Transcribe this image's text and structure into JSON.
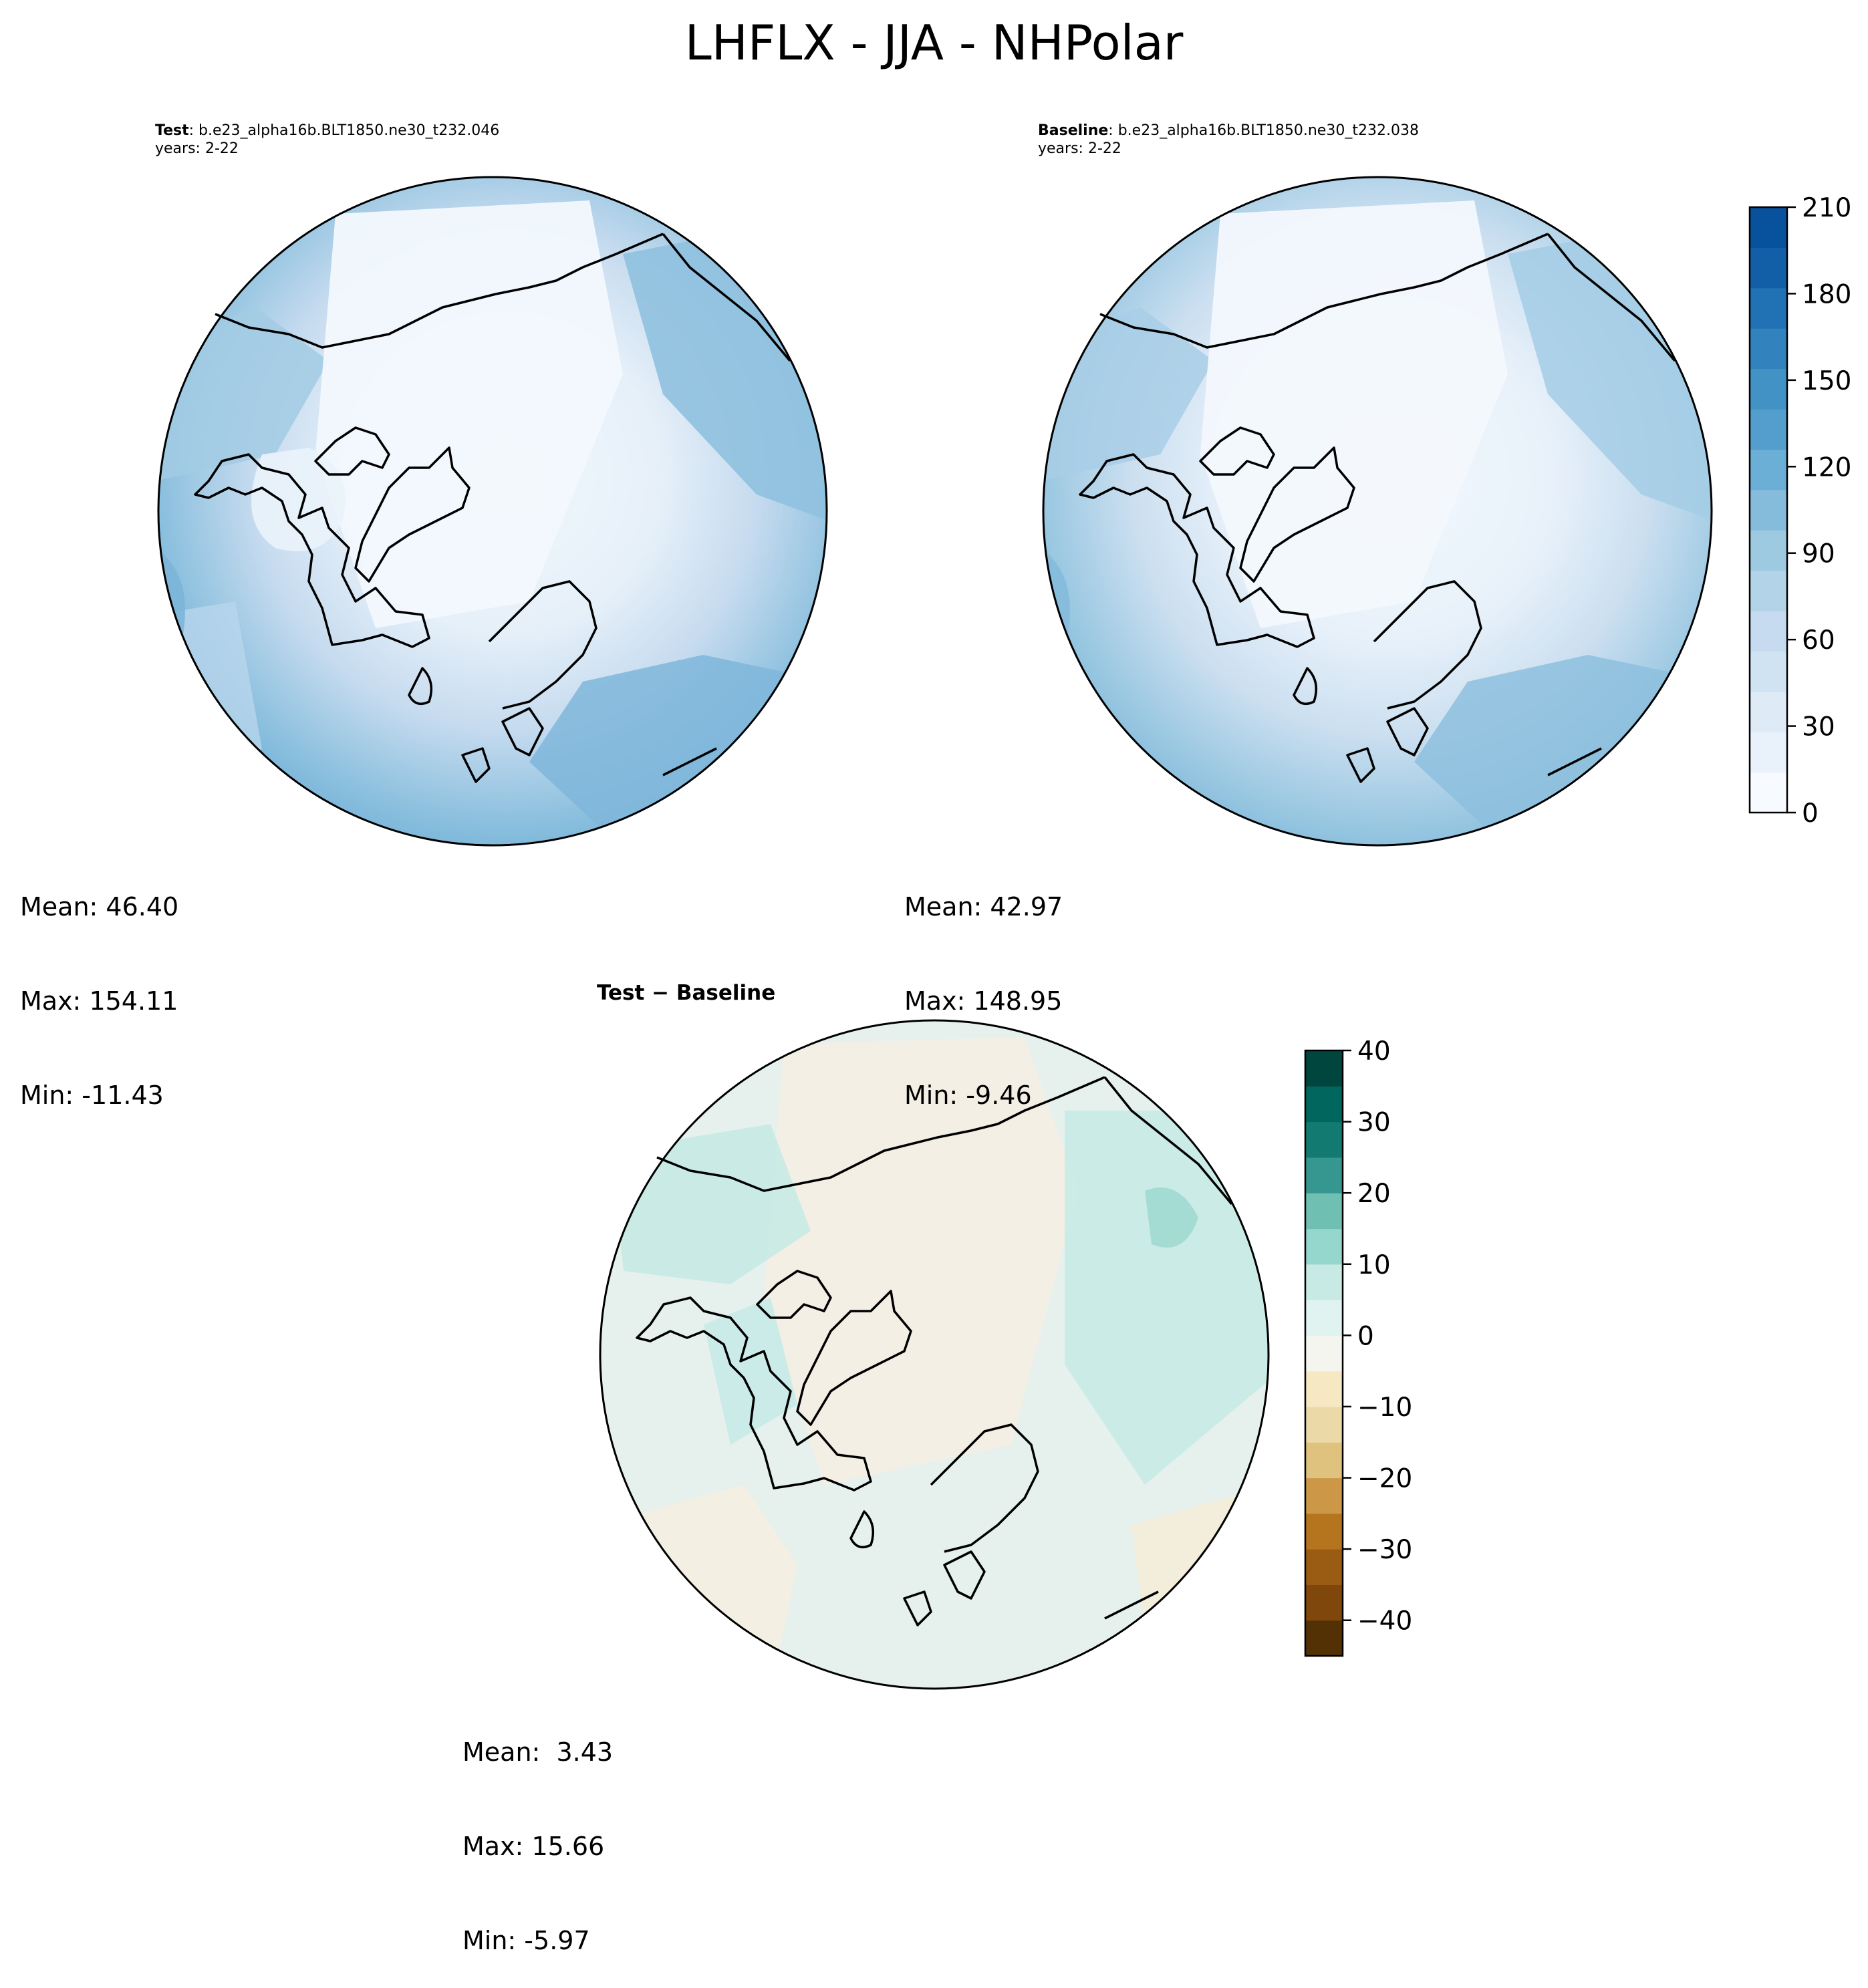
{
  "figure_title": "LHFLX - JJA - NHPolar",
  "panels": {
    "test": {
      "label": "Test",
      "case": ": b.e23_alpha16b.BLT1850.ne30_t232.046",
      "years": "years: 2-22",
      "stats": {
        "mean": "Mean: 46.40",
        "max": "Max: 154.11",
        "min": "Min: -11.43"
      }
    },
    "baseline": {
      "label": "Baseline",
      "case": ": b.e23_alpha16b.BLT1850.ne30_t232.038",
      "years": "years: 2-22",
      "stats": {
        "mean": "Mean: 42.97",
        "max": "Max: 148.95",
        "min": "Min: -9.46"
      }
    },
    "difference": {
      "title": "Test − Baseline",
      "stats": {
        "mean": "Mean:  3.43",
        "max": "Max: 15.66",
        "min": "Min: -5.97"
      }
    }
  },
  "colors": {
    "blues": [
      "#f7fbff",
      "#e9f2fb",
      "#deebf7",
      "#d0e3f3",
      "#c6dbef",
      "#b2d3e8",
      "#9ecae1",
      "#85bcdc",
      "#6baed6",
      "#539ecd",
      "#4292c6",
      "#3182bd",
      "#2171b5",
      "#135fa7",
      "#08519c",
      "#08306b"
    ],
    "brbg": [
      "#543005",
      "#7f470b",
      "#9a5b12",
      "#b5741e",
      "#cc9746",
      "#dfc27d",
      "#ecd9a8",
      "#f6e8c3",
      "#f5f5f0",
      "#e0f3f0",
      "#c7eae5",
      "#95d6cd",
      "#6fbfb2",
      "#35978f",
      "#127a70",
      "#01665e",
      "#01453f"
    ]
  },
  "chart_data": [
    {
      "type": "heatmap",
      "title": "Test",
      "projection": "north polar stereographic",
      "colorbar": {
        "min": 0,
        "max": 210,
        "ticks": [
          0,
          30,
          60,
          90,
          120,
          150,
          180,
          210
        ],
        "levels": 15
      },
      "stats": {
        "mean": 46.4,
        "max": 154.11,
        "min": -11.43
      }
    },
    {
      "type": "heatmap",
      "title": "Baseline",
      "projection": "north polar stereographic",
      "colorbar": {
        "min": 0,
        "max": 210,
        "ticks": [
          0,
          30,
          60,
          90,
          120,
          150,
          180,
          210
        ],
        "levels": 15
      },
      "stats": {
        "mean": 42.97,
        "max": 148.95,
        "min": -9.46
      }
    },
    {
      "type": "heatmap",
      "title": "Test − Baseline",
      "projection": "north polar stereographic",
      "colorbar": {
        "min": -45,
        "max": 40,
        "ticks": [
          40,
          30,
          20,
          10,
          0,
          -10,
          -20,
          -30,
          -40
        ],
        "levels": 17
      },
      "stats": {
        "mean": 3.43,
        "max": 15.66,
        "min": -5.97
      }
    }
  ]
}
